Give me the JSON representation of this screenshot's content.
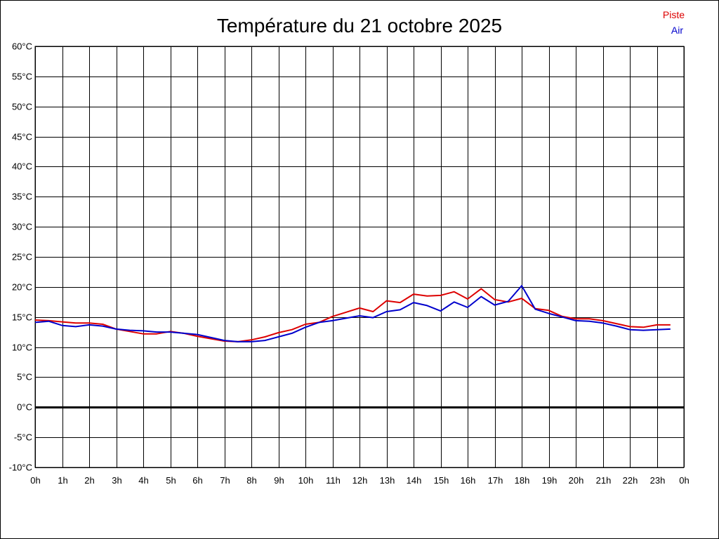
{
  "chart_data": {
    "type": "line",
    "title": "Température du 21 octobre 2025",
    "xlabel": "",
    "ylabel": "",
    "x_ticks": [
      "0h",
      "1h",
      "2h",
      "3h",
      "4h",
      "5h",
      "6h",
      "7h",
      "8h",
      "9h",
      "10h",
      "11h",
      "12h",
      "13h",
      "14h",
      "15h",
      "16h",
      "17h",
      "18h",
      "19h",
      "20h",
      "21h",
      "22h",
      "23h",
      "0h"
    ],
    "y_ticks": [
      "60°C",
      "55°C",
      "50°C",
      "45°C",
      "40°C",
      "35°C",
      "30°C",
      "25°C",
      "20°C",
      "15°C",
      "10°C",
      "5°C",
      "0°C",
      "-5°C",
      "-10°C"
    ],
    "xlim": [
      0,
      24
    ],
    "ylim": [
      -10,
      60
    ],
    "grid": true,
    "zero_line": true,
    "legend_position": "top-right",
    "x": [
      0,
      0.5,
      1,
      1.5,
      2,
      2.5,
      3,
      3.5,
      4,
      4.5,
      5,
      5.5,
      6,
      6.5,
      7,
      7.5,
      8,
      8.5,
      9,
      9.5,
      10,
      10.5,
      11,
      11.5,
      12,
      12.5,
      13,
      13.5,
      14,
      14.5,
      15,
      15.5,
      16,
      16.5,
      17,
      17.5,
      18,
      18.5,
      19,
      19.5,
      20,
      20.5,
      21,
      21.5,
      22,
      22.5,
      23,
      23.5
    ],
    "series": [
      {
        "name": "Piste",
        "color": "#dd0000",
        "values": [
          14.5,
          14.4,
          14.2,
          14.0,
          14.0,
          13.8,
          13.0,
          12.6,
          12.2,
          12.2,
          12.6,
          12.3,
          11.8,
          11.4,
          11.0,
          10.9,
          11.2,
          11.7,
          12.4,
          12.9,
          13.8,
          14.1,
          15.1,
          15.8,
          16.5,
          15.9,
          17.7,
          17.4,
          18.8,
          18.5,
          18.6,
          19.2,
          18.0,
          19.7,
          17.9,
          17.5,
          18.1,
          16.4,
          16.1,
          15.1,
          14.7,
          14.7,
          14.4,
          13.9,
          13.4,
          13.3,
          13.7,
          13.7
        ]
      },
      {
        "name": "Air",
        "color": "#0000cc",
        "values": [
          14.1,
          14.3,
          13.6,
          13.4,
          13.7,
          13.5,
          13.0,
          12.8,
          12.7,
          12.5,
          12.5,
          12.3,
          12.1,
          11.6,
          11.1,
          10.9,
          10.9,
          11.1,
          11.7,
          12.3,
          13.3,
          14.1,
          14.4,
          14.8,
          15.2,
          14.9,
          15.9,
          16.2,
          17.4,
          16.9,
          16.0,
          17.5,
          16.6,
          18.4,
          17.0,
          17.6,
          20.2,
          16.3,
          15.6,
          15.0,
          14.4,
          14.3,
          14.0,
          13.5,
          12.9,
          12.8,
          12.9,
          13.0
        ]
      }
    ]
  }
}
